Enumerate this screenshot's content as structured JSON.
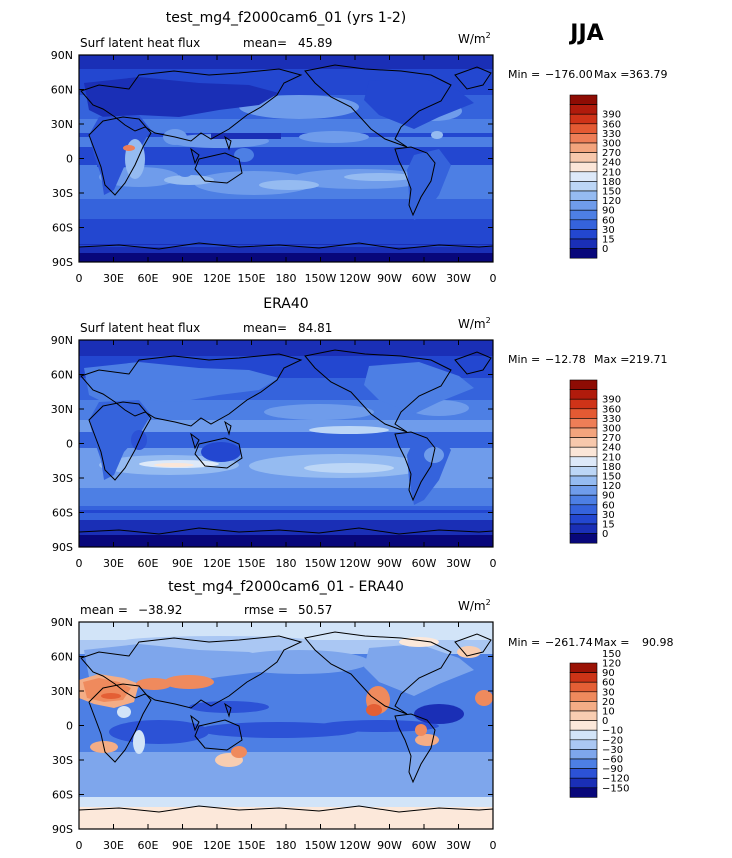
{
  "season": "JJA",
  "colors": {
    "absolute": [
      "#08077a",
      "#1a2fb6",
      "#2347d0",
      "#3563dc",
      "#4d7fe4",
      "#6f9ceb",
      "#95bbf1",
      "#bcd6f6",
      "#dde9f9",
      "#fbe6d8",
      "#f7c8ac",
      "#f3a47d",
      "#ee7e57",
      "#e45a33",
      "#cf3318",
      "#b01b0c",
      "#8e0c04"
    ],
    "difference": [
      "#08077a",
      "#1a2fb6",
      "#2c52d6",
      "#4d7fe4",
      "#7ea6ec",
      "#aac7f3",
      "#d2e4f8",
      "#fce8da",
      "#f8cdb1",
      "#f4ad86",
      "#ef8a5d",
      "#e45f35",
      "#cc3417",
      "#9a1205"
    ]
  },
  "chart_data": [
    {
      "type": "heatmap",
      "title": "test_mg4_f2000cam6_01 (yrs 1-2)",
      "variable": "Surf latent heat flux",
      "mean_label": "mean=",
      "mean": "45.89",
      "units": "W/m",
      "units_exp": "2",
      "min_label": "Min =",
      "min": "−176.00",
      "max_label": "Max =",
      "max": "363.79",
      "xticks": [
        "0",
        "30E",
        "60E",
        "90E",
        "120E",
        "150E",
        "180",
        "150W",
        "120W",
        "90W",
        "60W",
        "30W",
        "0"
      ],
      "yticks": [
        "90N",
        "60N",
        "30N",
        "0",
        "30S",
        "60S",
        "90S"
      ],
      "levels": [
        "0",
        "15",
        "30",
        "60",
        "90",
        "120",
        "150",
        "180",
        "210",
        "240",
        "270",
        "300",
        "330",
        "360",
        "390"
      ],
      "palette": "absolute"
    },
    {
      "type": "heatmap",
      "title": "ERA40",
      "variable": "Surf latent heat flux",
      "mean_label": "mean=",
      "mean": "84.81",
      "units": "W/m",
      "units_exp": "2",
      "min_label": "Min =",
      "min": "−12.78",
      "max_label": "Max =",
      "max": "219.71",
      "xticks": [
        "0",
        "30E",
        "60E",
        "90E",
        "120E",
        "150E",
        "180",
        "150W",
        "120W",
        "90W",
        "60W",
        "30W",
        "0"
      ],
      "yticks": [
        "90N",
        "60N",
        "30N",
        "0",
        "30S",
        "60S",
        "90S"
      ],
      "levels": [
        "0",
        "15",
        "30",
        "60",
        "90",
        "120",
        "150",
        "180",
        "210",
        "240",
        "270",
        "300",
        "330",
        "360",
        "390"
      ],
      "palette": "absolute"
    },
    {
      "type": "heatmap",
      "title": "test_mg4_f2000cam6_01 - ERA40",
      "mean_label": "mean =",
      "mean": "−38.92",
      "rmse_label": "rmse =",
      "rmse": "50.57",
      "units": "W/m",
      "units_exp": "2",
      "min_label": "Min =",
      "min": "−261.74",
      "max_label": "Max =",
      "max": "90.98",
      "xticks": [
        "0",
        "30E",
        "60E",
        "90E",
        "120E",
        "150E",
        "180",
        "150W",
        "120W",
        "90W",
        "60W",
        "30W",
        "0"
      ],
      "yticks": [
        "90N",
        "60N",
        "30N",
        "0",
        "30S",
        "60S",
        "90S"
      ],
      "levels": [
        "−150",
        "−120",
        "−90",
        "−60",
        "−30",
        "−20",
        "−10",
        "0",
        "10",
        "20",
        "30",
        "60",
        "90",
        "120",
        "150"
      ],
      "palette": "difference"
    }
  ]
}
